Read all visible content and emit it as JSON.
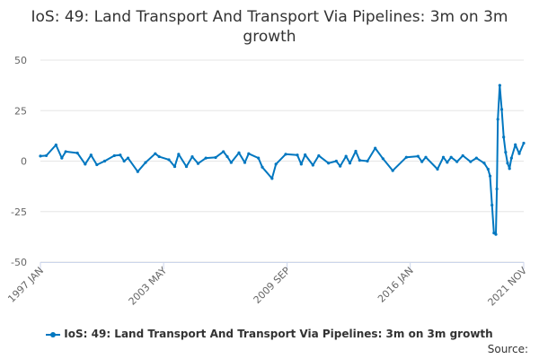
{
  "chart_data": {
    "type": "line",
    "title": "IoS: 49: Land Transport And Transport Via Pipelines: 3m on 3m growth",
    "xlabel": "",
    "ylabel": "",
    "xlim": [
      1997.0,
      2021.83
    ],
    "ylim": [
      -50,
      50
    ],
    "yticks": [
      50,
      25,
      0,
      -25,
      -50
    ],
    "ytick_labels": [
      "50",
      "25",
      "0",
      "-25",
      "-50"
    ],
    "xticks": [
      1997.0,
      2003.33,
      2009.67,
      2016.0,
      2021.83
    ],
    "xtick_labels": [
      "1997 JAN",
      "2003 MAY",
      "2009 SEP",
      "2016 JAN",
      "2021 NOV"
    ],
    "grid": true,
    "legend_position": "bottom",
    "color": "#0077c0",
    "series": [
      {
        "name": "IoS: 49: Land Transport And Transport Via Pipelines: 3m on 3m growth",
        "x": [
          1997.0,
          1997.3,
          1997.8,
          1998.1,
          1998.3,
          1998.9,
          1999.3,
          1999.6,
          1999.9,
          2000.3,
          2000.8,
          2001.1,
          2001.3,
          2001.5,
          2002.0,
          2002.4,
          2002.9,
          2003.1,
          2003.6,
          2003.9,
          2004.1,
          2004.5,
          2004.8,
          2005.1,
          2005.5,
          2006.0,
          2006.4,
          2006.6,
          2006.8,
          2007.2,
          2007.5,
          2007.7,
          2008.2,
          2008.4,
          2008.9,
          2009.1,
          2009.6,
          2010.2,
          2010.4,
          2010.6,
          2011.0,
          2011.3,
          2011.8,
          2012.2,
          2012.4,
          2012.7,
          2012.9,
          2013.2,
          2013.4,
          2013.8,
          2014.2,
          2014.6,
          2015.1,
          2015.8,
          2016.4,
          2016.6,
          2016.8,
          2017.4,
          2017.7,
          2017.9,
          2018.1,
          2018.4,
          2018.7,
          2019.1,
          2019.4,
          2019.8,
          2020.0,
          2020.1,
          2020.2,
          2020.3,
          2020.4,
          2020.45,
          2020.5,
          2020.6,
          2020.7,
          2020.8,
          2020.9,
          2021.0,
          2021.1,
          2021.2,
          2021.4,
          2021.6,
          2021.83
        ],
        "values": [
          2.5,
          2.7,
          8,
          1.5,
          4.7,
          4,
          -1.5,
          3,
          -1.8,
          0,
          2.7,
          3,
          0,
          1.5,
          -5.2,
          -0.7,
          3.7,
          2.2,
          0.7,
          -2.7,
          3.4,
          -2.7,
          2.2,
          -1.2,
          1.5,
          1.8,
          4.7,
          2.2,
          -0.7,
          4.1,
          -0.7,
          3.7,
          1.5,
          -3,
          -8.6,
          -1.5,
          3.4,
          3,
          -1.5,
          3.1,
          -2,
          2.7,
          -1,
          0,
          -2.5,
          2.4,
          -1,
          4.9,
          0.4,
          0,
          6.4,
          1.2,
          -4.7,
          1.9,
          2.4,
          -0.3,
          1.9,
          -4,
          1.9,
          -0.6,
          1.9,
          -0.3,
          2.7,
          -0.3,
          1.5,
          -1,
          -4,
          -7.4,
          -21.8,
          -35.6,
          -36.3,
          -13.8,
          20.7,
          37.5,
          25.6,
          11.9,
          4.4,
          -1,
          -3.7,
          1.5,
          8.1,
          3.7,
          8.9
        ]
      }
    ]
  },
  "legend": {
    "label": "IoS: 49: Land Transport And Transport Via Pipelines: 3m on 3m growth"
  },
  "source_label": "Source:"
}
